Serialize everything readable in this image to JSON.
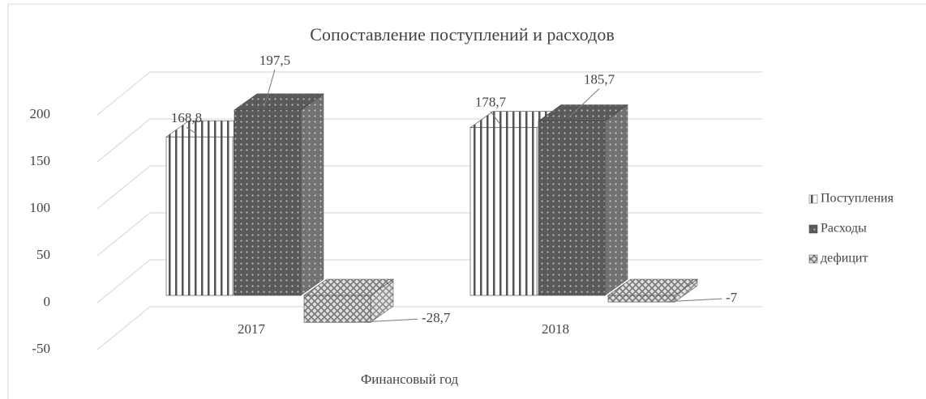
{
  "chart_data": {
    "type": "bar3d",
    "title": "Сопоставление поступлений и расходов",
    "x_label": "Финансовый год",
    "categories": [
      "2017",
      "2018"
    ],
    "series": [
      {
        "name": "Поступления",
        "color": "#ffffff",
        "values": [
          168.8,
          178.7
        ],
        "value_labels": [
          "168,8",
          "178,7"
        ]
      },
      {
        "name": "Расходы",
        "color": "#5a5a5a",
        "values": [
          197.5,
          185.7
        ],
        "value_labels": [
          "197,5",
          "185,7"
        ]
      },
      {
        "name": "дефицит",
        "color": "#b8b8b8",
        "values": [
          -28.7,
          -7
        ],
        "value_labels": [
          "-28,7",
          "-7"
        ]
      }
    ],
    "ylim": [
      -50,
      200
    ],
    "yticks": [
      -50,
      0,
      50,
      100,
      150,
      200
    ],
    "grid": true,
    "legend": "right"
  }
}
